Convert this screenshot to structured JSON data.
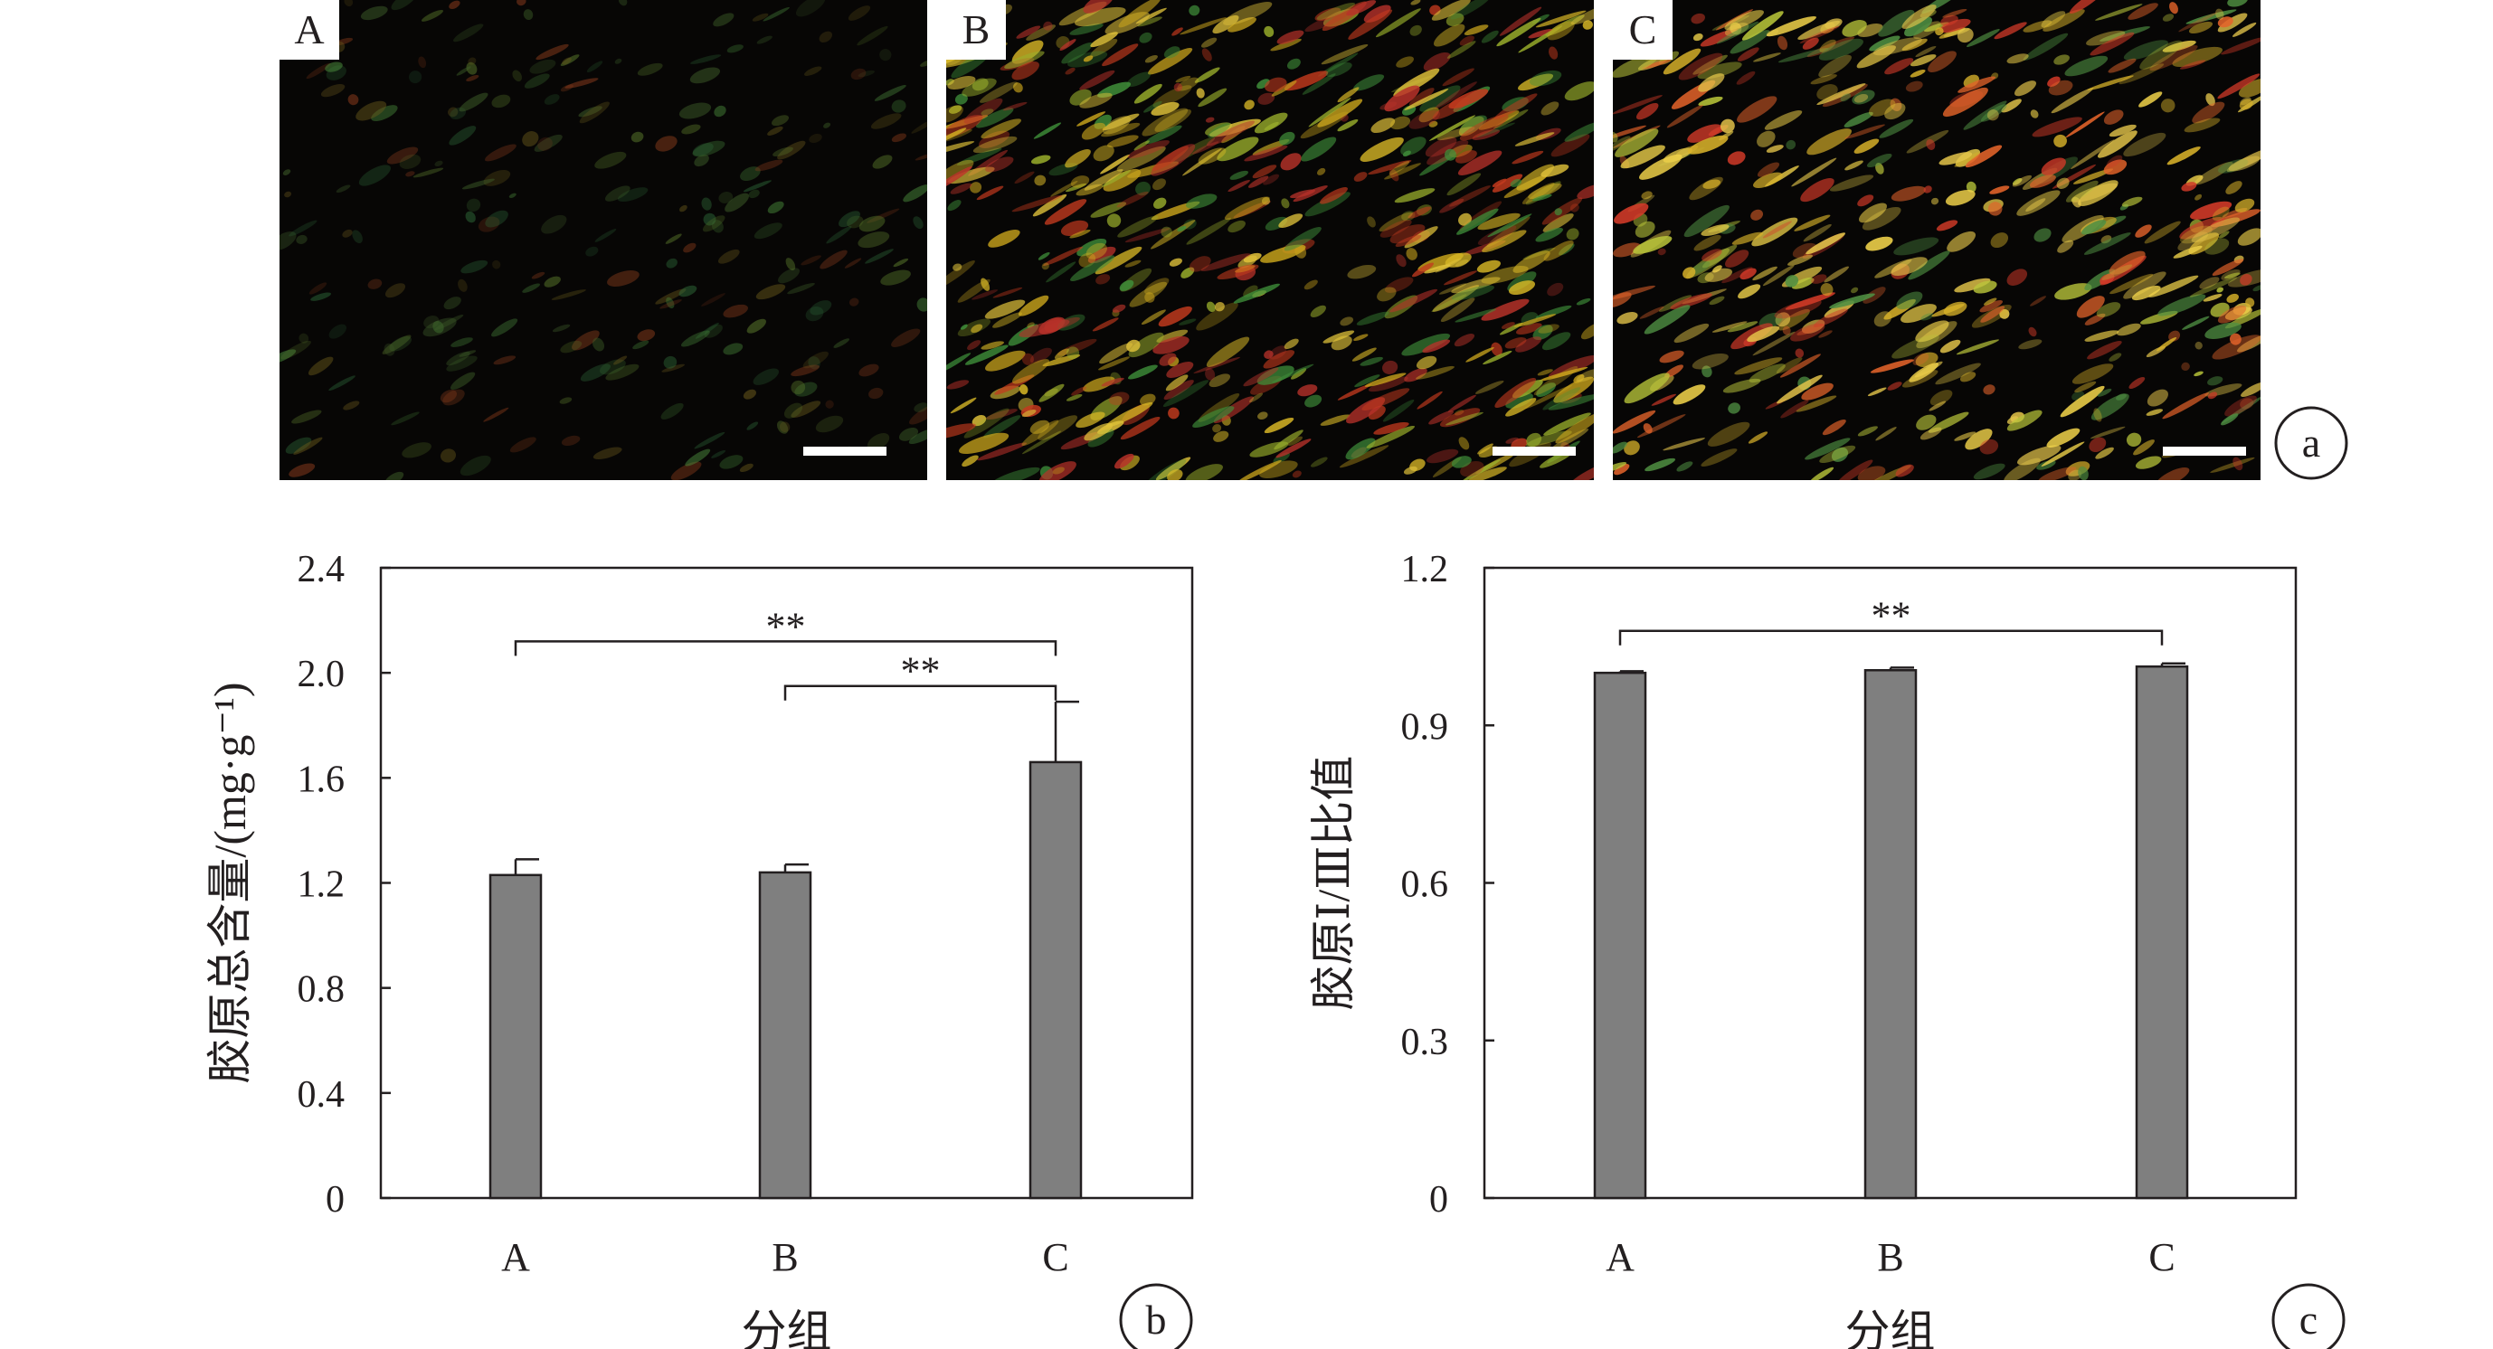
{
  "panel_a": {
    "tag": "a",
    "images": [
      {
        "label": "A",
        "description": "picrosirius red polarized light micrograph, group A"
      },
      {
        "label": "B",
        "description": "picrosirius red polarized light micrograph, group B"
      },
      {
        "label": "C",
        "description": "picrosirius red polarized light micrograph, group C"
      }
    ]
  },
  "colors": {
    "bar": "#7f7f7f",
    "axis": "#231f20",
    "background": "#ffffff"
  },
  "chart_data": [
    {
      "id": "b",
      "type": "bar",
      "panel_tag": "b",
      "categories": [
        "A",
        "B",
        "C"
      ],
      "values": [
        1.23,
        1.24,
        1.66
      ],
      "errors": [
        0.06,
        0.03,
        0.23
      ],
      "xlabel": "分组",
      "ylabel": "胶原总含量/(mg·g⁻¹)",
      "ylim": [
        0,
        2.4
      ],
      "yticks": [
        "0",
        "0.4",
        "0.8",
        "1.2",
        "1.6",
        "2.0",
        "2.4"
      ],
      "grid": false,
      "legend": "none",
      "significance": [
        {
          "from": "A",
          "to": "C",
          "label": "**",
          "y": 2.12
        },
        {
          "from": "B",
          "to": "C",
          "label": "**",
          "y": 1.95
        }
      ]
    },
    {
      "id": "c",
      "type": "bar",
      "panel_tag": "c",
      "categories": [
        "A",
        "B",
        "C"
      ],
      "values": [
        1.0,
        1.005,
        1.012
      ],
      "errors": [
        0.003,
        0.005,
        0.006
      ],
      "xlabel": "分组",
      "ylabel": "胶原Ⅰ/Ⅲ比值",
      "ylim": [
        0,
        1.2
      ],
      "yticks": [
        "0",
        "0.3",
        "0.6",
        "0.9",
        "1.2"
      ],
      "grid": false,
      "legend": "none",
      "significance": [
        {
          "from": "A",
          "to": "C",
          "label": "**",
          "y": 1.08
        }
      ]
    }
  ]
}
